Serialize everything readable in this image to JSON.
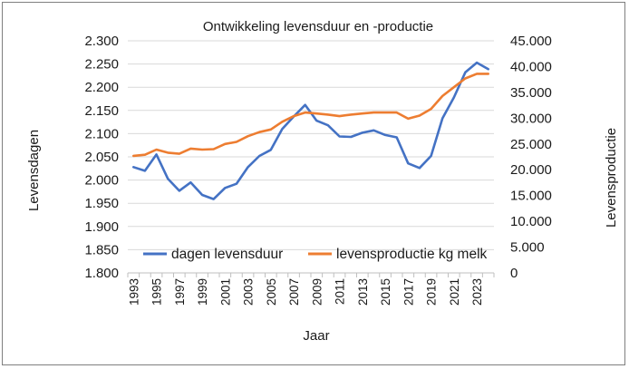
{
  "chart_data": {
    "type": "line",
    "title": "Ontwikkeling levensduur en -productie",
    "xlabel": "Jaar",
    "ylabel_left": "Levensdagen",
    "ylabel_right": "Levensproductie",
    "x": [
      1993,
      1994,
      1995,
      1996,
      1997,
      1998,
      1999,
      2000,
      2001,
      2002,
      2003,
      2004,
      2005,
      2006,
      2007,
      2008,
      2009,
      2010,
      2011,
      2012,
      2013,
      2014,
      2015,
      2016,
      2017,
      2018,
      2019,
      2020,
      2021,
      2022,
      2023,
      2024
    ],
    "x_tick_labels": [
      "1993",
      "1995",
      "1997",
      "1999",
      "2001",
      "2003",
      "2005",
      "2007",
      "2009",
      "2011",
      "2013",
      "2015",
      "2017",
      "2019",
      "2021",
      "2023"
    ],
    "ylim_left": [
      1800,
      2300
    ],
    "ylim_right": [
      0,
      45000
    ],
    "y_left_tick_labels": [
      "1.800",
      "1.850",
      "1.900",
      "1.950",
      "2.000",
      "2.050",
      "2.100",
      "2.150",
      "2.200",
      "2.250",
      "2.300"
    ],
    "y_right_tick_labels": [
      "0",
      "5.000",
      "10.000",
      "15.000",
      "20.000",
      "25.000",
      "30.000",
      "35.000",
      "40.000",
      "45.000"
    ],
    "legend_position": "bottom-inside",
    "series": [
      {
        "name": "dagen levensduur",
        "axis": "left",
        "color": "#4472c4",
        "values": [
          2028,
          2020,
          2055,
          2003,
          1977,
          1995,
          1968,
          1959,
          1983,
          1992,
          2028,
          2052,
          2065,
          2110,
          2137,
          2162,
          2128,
          2118,
          2094,
          2093,
          2102,
          2107,
          2097,
          2092,
          2036,
          2026,
          2052,
          2133,
          2178,
          2232,
          2253,
          2239
        ]
      },
      {
        "name": "levensproductie kg melk",
        "axis": "right",
        "color": "#ed7d31",
        "values": [
          22700,
          22900,
          23900,
          23300,
          23100,
          24100,
          23900,
          24000,
          25000,
          25400,
          26500,
          27300,
          27800,
          29300,
          30400,
          31100,
          30900,
          30700,
          30400,
          30700,
          30900,
          31100,
          31100,
          31100,
          29900,
          30500,
          31800,
          34300,
          36000,
          37700,
          38600,
          38600
        ]
      }
    ]
  }
}
